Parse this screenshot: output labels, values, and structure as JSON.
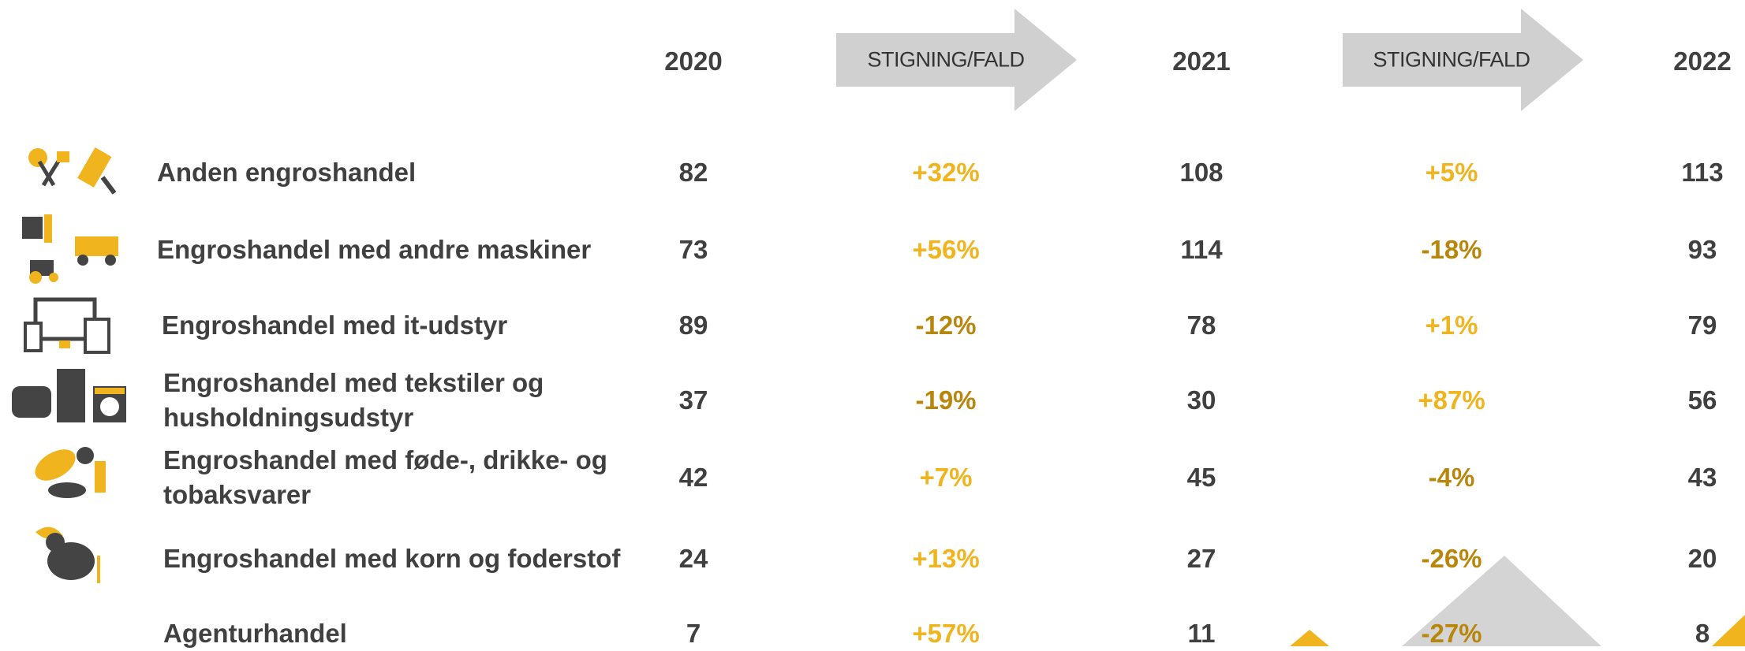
{
  "header": {
    "columns": [
      "2020",
      "STIGNING/FALD",
      "2021",
      "STIGNING/FALD",
      "2022"
    ]
  },
  "rows": [
    {
      "label": "Anden engroshandel",
      "cells": [
        82,
        "+32%",
        108,
        "+5%",
        113
      ]
    },
    {
      "label": "Engroshandel med andre maskiner",
      "cells": [
        73,
        "+56%",
        114,
        "-18%",
        93
      ]
    },
    {
      "label": "Engroshandel med it-udstyr",
      "cells": [
        89,
        "-12%",
        78,
        "+1%",
        79
      ]
    },
    {
      "label": "Engroshandel med tekstiler og husholdningsudstyr",
      "cells": [
        37,
        "-19%",
        30,
        "+87%",
        56
      ]
    },
    {
      "label": "Engroshandel med føde-, drikke- og tobaksvarer",
      "cells": [
        42,
        "+7%",
        45,
        "-4%",
        43
      ]
    },
    {
      "label": "Engroshandel med korn og foderstof",
      "cells": [
        24,
        "+13%",
        27,
        "-26%",
        20
      ]
    },
    {
      "label": "Agenturhandel",
      "cells": [
        7,
        "+57%",
        11,
        "-27%",
        8
      ]
    }
  ]
}
